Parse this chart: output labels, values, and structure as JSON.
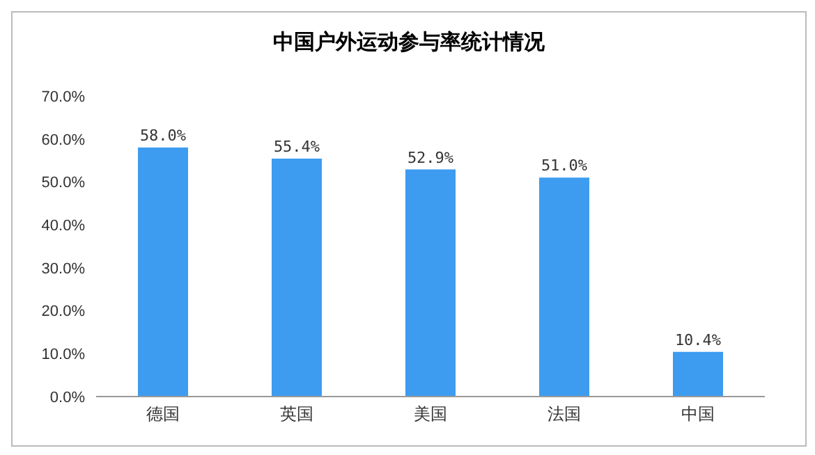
{
  "chart_data": {
    "type": "bar",
    "title": "中国户外运动参与率统计情况",
    "categories": [
      "德国",
      "英国",
      "美国",
      "法国",
      "中国"
    ],
    "values": [
      58.0,
      55.4,
      52.9,
      51.0,
      10.4
    ],
    "value_labels": [
      "58.0%",
      "55.4%",
      "52.9%",
      "51.0%",
      "10.4%"
    ],
    "color": "#3d9cf0",
    "ylim": [
      0,
      70
    ],
    "yticks": [
      {
        "value": 0,
        "label": "0.0%"
      },
      {
        "value": 10,
        "label": "10.0%"
      },
      {
        "value": 20,
        "label": "20.0%"
      },
      {
        "value": 30,
        "label": "30.0%"
      },
      {
        "value": 40,
        "label": "40.0%"
      },
      {
        "value": 50,
        "label": "50.0%"
      },
      {
        "value": 60,
        "label": "60.0%"
      },
      {
        "value": 70,
        "label": "70.0%"
      }
    ],
    "grid": false
  }
}
